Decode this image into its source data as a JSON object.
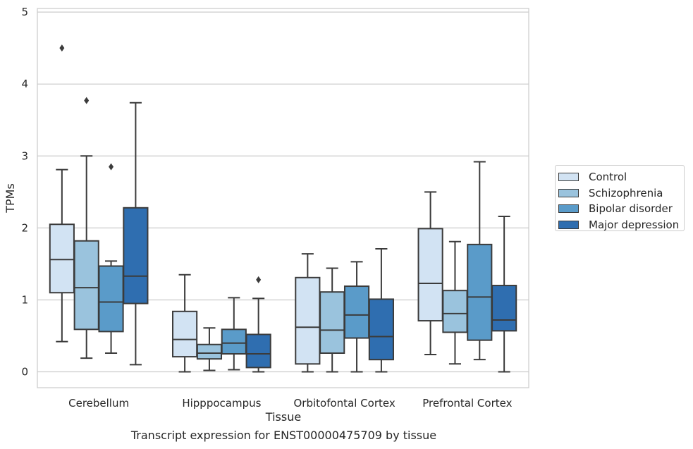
{
  "chart_data": {
    "type": "box",
    "xlabel": "Tissue",
    "ylabel": "TPMs",
    "caption": "Transcript expression for ENST00000475709 by tissue",
    "ylim": [
      -0.22,
      5.05
    ],
    "yticks": [
      0,
      1,
      2,
      3,
      4,
      5
    ],
    "grid": "horizontal",
    "legend_position": "right",
    "categories": [
      "Cerebellum",
      "Hipppocampus",
      "Orbitofontal Cortex",
      "Prefrontal Cortex"
    ],
    "series": [
      {
        "name": "Control",
        "color": "#d2e3f3",
        "boxes": [
          {
            "whisker_low": 0.42,
            "q1": 1.1,
            "median": 1.56,
            "q3": 2.05,
            "whisker_high": 2.81,
            "outliers": [
              4.5
            ]
          },
          {
            "whisker_low": 0.0,
            "q1": 0.21,
            "median": 0.45,
            "q3": 0.84,
            "whisker_high": 1.35,
            "outliers": []
          },
          {
            "whisker_low": 0.0,
            "q1": 0.11,
            "median": 0.62,
            "q3": 1.31,
            "whisker_high": 1.64,
            "outliers": []
          },
          {
            "whisker_low": 0.24,
            "q1": 0.71,
            "median": 1.23,
            "q3": 1.99,
            "whisker_high": 2.5,
            "outliers": []
          }
        ]
      },
      {
        "name": "Schizophrenia",
        "color": "#9ac3dd",
        "boxes": [
          {
            "whisker_low": 0.19,
            "q1": 0.59,
            "median": 1.17,
            "q3": 1.82,
            "whisker_high": 3.0,
            "outliers": [
              3.77
            ]
          },
          {
            "whisker_low": 0.02,
            "q1": 0.18,
            "median": 0.26,
            "q3": 0.38,
            "whisker_high": 0.61,
            "outliers": []
          },
          {
            "whisker_low": 0.0,
            "q1": 0.26,
            "median": 0.58,
            "q3": 1.11,
            "whisker_high": 1.44,
            "outliers": []
          },
          {
            "whisker_low": 0.11,
            "q1": 0.55,
            "median": 0.81,
            "q3": 1.13,
            "whisker_high": 1.81,
            "outliers": []
          }
        ]
      },
      {
        "name": "Bipolar disorder",
        "color": "#5a9bc9",
        "boxes": [
          {
            "whisker_low": 0.26,
            "q1": 0.56,
            "median": 0.97,
            "q3": 1.47,
            "whisker_high": 1.54,
            "outliers": [
              2.85
            ]
          },
          {
            "whisker_low": 0.03,
            "q1": 0.25,
            "median": 0.4,
            "q3": 0.59,
            "whisker_high": 1.03,
            "outliers": []
          },
          {
            "whisker_low": 0.0,
            "q1": 0.47,
            "median": 0.79,
            "q3": 1.19,
            "whisker_high": 1.53,
            "outliers": []
          },
          {
            "whisker_low": 0.17,
            "q1": 0.44,
            "median": 1.04,
            "q3": 1.77,
            "whisker_high": 2.92,
            "outliers": []
          }
        ]
      },
      {
        "name": "Major depression",
        "color": "#2f6eb0",
        "boxes": [
          {
            "whisker_low": 0.1,
            "q1": 0.95,
            "median": 1.33,
            "q3": 2.28,
            "whisker_high": 3.74,
            "outliers": []
          },
          {
            "whisker_low": 0.0,
            "q1": 0.06,
            "median": 0.25,
            "q3": 0.52,
            "whisker_high": 1.02,
            "outliers": [
              1.28
            ]
          },
          {
            "whisker_low": 0.0,
            "q1": 0.17,
            "median": 0.49,
            "q3": 1.01,
            "whisker_high": 1.71,
            "outliers": []
          },
          {
            "whisker_low": 0.0,
            "q1": 0.57,
            "median": 0.72,
            "q3": 1.2,
            "whisker_high": 2.16,
            "outliers": []
          }
        ]
      }
    ]
  }
}
